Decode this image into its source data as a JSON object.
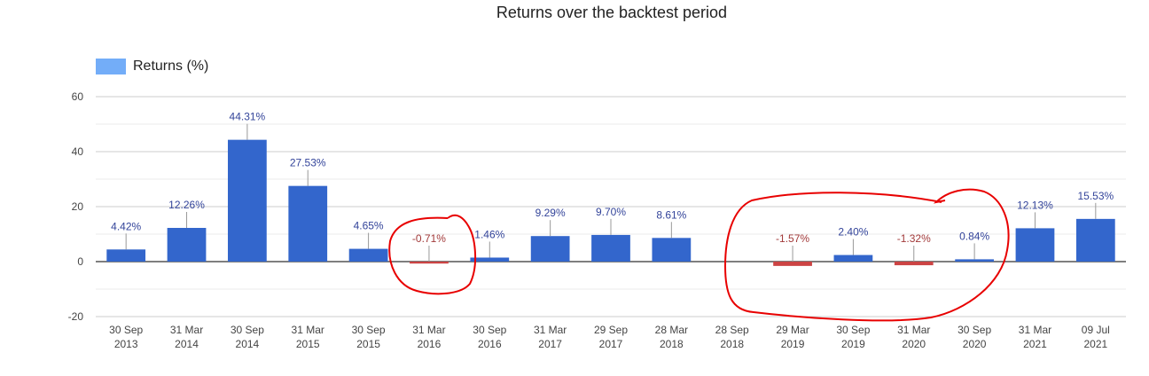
{
  "chart_data": {
    "type": "bar",
    "title": "Returns over the backtest period",
    "xlabel": "",
    "ylabel": "",
    "legend": {
      "position": "top-left",
      "entries": [
        "Returns (%)"
      ]
    },
    "ylim": [
      -20,
      60
    ],
    "yticks": [
      "60",
      "40",
      "20",
      "0",
      "-20"
    ],
    "ytick_values": [
      60,
      40,
      20,
      0,
      -20
    ],
    "grid": true,
    "categories": [
      [
        "30 Sep",
        "2013"
      ],
      [
        "31 Mar",
        "2014"
      ],
      [
        "30 Sep",
        "2014"
      ],
      [
        "31 Mar",
        "2015"
      ],
      [
        "30 Sep",
        "2015"
      ],
      [
        "31 Mar",
        "2016"
      ],
      [
        "30 Sep",
        "2016"
      ],
      [
        "31 Mar",
        "2017"
      ],
      [
        "29 Sep",
        "2017"
      ],
      [
        "28 Mar",
        "2018"
      ],
      [
        "28 Sep",
        "2018"
      ],
      [
        "29 Mar",
        "2019"
      ],
      [
        "30 Sep",
        "2019"
      ],
      [
        "31 Mar",
        "2020"
      ],
      [
        "30 Sep",
        "2020"
      ],
      [
        "31 Mar",
        "2021"
      ],
      [
        "09 Jul",
        "2021"
      ]
    ],
    "series": [
      {
        "name": "Returns (%)",
        "values": [
          4.42,
          12.26,
          44.31,
          27.53,
          4.65,
          -0.71,
          1.46,
          9.29,
          9.7,
          8.61,
          null,
          -1.57,
          2.4,
          -1.32,
          0.84,
          12.13,
          15.53
        ],
        "labels": [
          "4.42%",
          "12.26%",
          "44.31%",
          "27.53%",
          "4.65%",
          "-0.71%",
          "1.46%",
          "9.29%",
          "9.70%",
          "8.61%",
          "",
          "-1.57%",
          "2.40%",
          "-1.32%",
          "0.84%",
          "12.13%",
          "15.53%"
        ]
      }
    ],
    "colors": {
      "positive_bar": "#3366cc",
      "negative_bar": "#cc4444",
      "positive_label": "#33449a",
      "negative_label": "#a23a3a",
      "legend_swatch": "#73adf8",
      "annotation": "#e80000"
    },
    "annotations": [
      "hand-drawn red circle around 31 Mar 2016",
      "hand-drawn red loop around 28 Sep 2018 – 30 Sep 2020"
    ]
  }
}
